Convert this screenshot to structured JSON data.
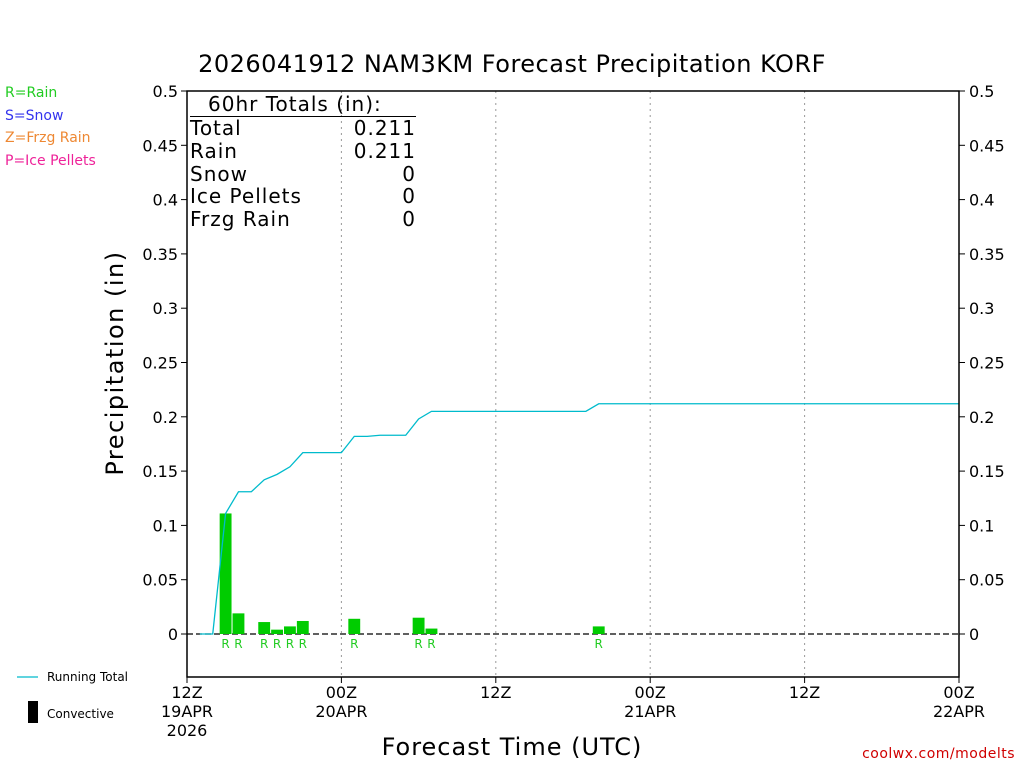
{
  "title": "2026041912 NAM3KM Forecast Precipitation KORF",
  "xlabel": "Forecast Time (UTC)",
  "ylabel": "Precipitation (in)",
  "credit": "coolwx.com/modelts",
  "precip_type_legend": [
    {
      "label": "R=Rain",
      "color": "#22cc22"
    },
    {
      "label": "S=Snow",
      "color": "#3333ee"
    },
    {
      "label": "Z=Frzg Rain",
      "color": "#ee8833"
    },
    {
      "label": "P=Ice Pellets",
      "color": "#ee2299"
    }
  ],
  "bottom_legend": {
    "running_total": "Running Total",
    "convective": "Convective"
  },
  "totals": {
    "heading": "60hr Totals (in):",
    "rows": [
      {
        "label": "Total",
        "value": "0.211"
      },
      {
        "label": "Rain",
        "value": "0.211"
      },
      {
        "label": "Snow",
        "value": "0"
      },
      {
        "label": "Ice Pellets",
        "value": "0"
      },
      {
        "label": "Frzg Rain",
        "value": "0"
      }
    ]
  },
  "colors": {
    "bar": "#00cc00",
    "running_total": "#00bbcc",
    "precip_letter": "#22cc22",
    "credit": "#d00000"
  },
  "chart_data": {
    "type": "bar",
    "xlim": [
      0,
      60
    ],
    "ylim": [
      -0.04,
      0.5
    ],
    "yticks": [
      0,
      0.05,
      0.1,
      0.15,
      0.2,
      0.25,
      0.3,
      0.35,
      0.4,
      0.45,
      0.5
    ],
    "ytick_labels": [
      "0",
      "0.05",
      "0.1",
      "0.15",
      "0.2",
      "0.25",
      "0.3",
      "0.35",
      "0.4",
      "0.45",
      "0.5"
    ],
    "xticks": [
      {
        "x": 0,
        "lines": [
          "12Z",
          "19APR",
          "2026"
        ]
      },
      {
        "x": 12,
        "lines": [
          "00Z",
          "20APR"
        ]
      },
      {
        "x": 24,
        "lines": [
          "12Z"
        ]
      },
      {
        "x": 36,
        "lines": [
          "00Z",
          "21APR"
        ]
      },
      {
        "x": 48,
        "lines": [
          "12Z"
        ]
      },
      {
        "x": 60,
        "lines": [
          "00Z",
          "22APR"
        ]
      }
    ],
    "grid": "vertical dotted",
    "bars": [
      {
        "x": 3,
        "value": 0.111,
        "type": "R"
      },
      {
        "x": 4,
        "value": 0.019,
        "type": "R"
      },
      {
        "x": 6,
        "value": 0.011,
        "type": "R"
      },
      {
        "x": 7,
        "value": 0.004,
        "type": "R"
      },
      {
        "x": 8,
        "value": 0.007,
        "type": "R"
      },
      {
        "x": 9,
        "value": 0.012,
        "type": "R"
      },
      {
        "x": 13,
        "value": 0.014,
        "type": "R"
      },
      {
        "x": 18,
        "value": 0.015,
        "type": "R"
      },
      {
        "x": 19,
        "value": 0.005,
        "type": "R"
      },
      {
        "x": 32,
        "value": 0.007,
        "type": "R"
      }
    ],
    "running_total": {
      "name": "Running Total",
      "x": [
        1,
        2,
        3,
        4,
        5,
        6,
        7,
        8,
        9,
        10,
        11,
        12,
        13,
        14,
        15,
        16,
        17,
        18,
        19,
        20,
        30,
        31,
        32,
        60
      ],
      "y": [
        0,
        0,
        0.111,
        0.131,
        0.131,
        0.142,
        0.147,
        0.154,
        0.167,
        0.167,
        0.167,
        0.167,
        0.182,
        0.182,
        0.183,
        0.183,
        0.183,
        0.198,
        0.205,
        0.205,
        0.205,
        0.205,
        0.212,
        0.212
      ]
    }
  }
}
